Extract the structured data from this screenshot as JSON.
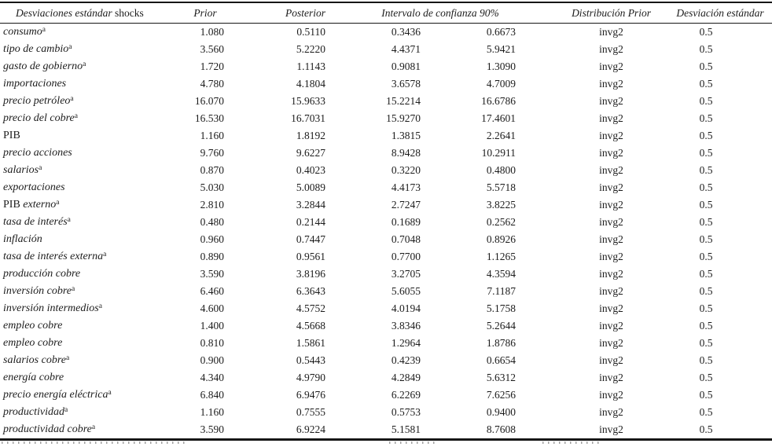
{
  "page": {
    "background_color": "#ffffff",
    "text_color": "#1c1c1c",
    "rule_color": "#161616"
  },
  "table": {
    "header": {
      "label_segments": [
        {
          "t": "Desviaciones estándar ",
          "i": true
        },
        {
          "t": "shocks",
          "i": false
        }
      ],
      "prior": "Prior",
      "posterior": "Posterior",
      "ci": "Intervalo de confianza 90%",
      "dist": "Distribución Prior",
      "std": "Desviación estándar"
    },
    "rows": [
      {
        "segments": [
          {
            "t": "consumo",
            "i": true
          }
        ],
        "sup": "a",
        "prior": "1.080",
        "posterior": "0.5110",
        "ci_low": "0.3436",
        "ci_high": "0.6673",
        "dist": "invg2",
        "std": "0.5"
      },
      {
        "segments": [
          {
            "t": "tipo de cambio",
            "i": true
          }
        ],
        "sup": "a",
        "prior": "3.560",
        "posterior": "5.2220",
        "ci_low": "4.4371",
        "ci_high": "5.9421",
        "dist": "invg2",
        "std": "0.5"
      },
      {
        "segments": [
          {
            "t": "gasto de gobierno",
            "i": true
          }
        ],
        "sup": "a",
        "prior": "1.720",
        "posterior": "1.1143",
        "ci_low": "0.9081",
        "ci_high": "1.3090",
        "dist": "invg2",
        "std": "0.5"
      },
      {
        "segments": [
          {
            "t": "importaciones",
            "i": true
          }
        ],
        "sup": "",
        "prior": "4.780",
        "posterior": "4.1804",
        "ci_low": "3.6578",
        "ci_high": "4.7009",
        "dist": "invg2",
        "std": "0.5"
      },
      {
        "segments": [
          {
            "t": "precio petróleo",
            "i": true
          }
        ],
        "sup": "a",
        "prior": "16.070",
        "posterior": "15.9633",
        "ci_low": "15.2214",
        "ci_high": "16.6786",
        "dist": "invg2",
        "std": "0.5"
      },
      {
        "segments": [
          {
            "t": "precio del cobre",
            "i": true
          }
        ],
        "sup": "a",
        "prior": "16.530",
        "posterior": "16.7031",
        "ci_low": "15.9270",
        "ci_high": "17.4601",
        "dist": "invg2",
        "std": "0.5"
      },
      {
        "segments": [
          {
            "t": "PIB",
            "i": false
          }
        ],
        "sup": "",
        "prior": "1.160",
        "posterior": "1.8192",
        "ci_low": "1.3815",
        "ci_high": "2.2641",
        "dist": "invg2",
        "std": "0.5"
      },
      {
        "segments": [
          {
            "t": "precio acciones",
            "i": true
          }
        ],
        "sup": "",
        "prior": "9.760",
        "posterior": "9.6227",
        "ci_low": "8.9428",
        "ci_high": "10.2911",
        "dist": "invg2",
        "std": "0.5"
      },
      {
        "segments": [
          {
            "t": "salarios",
            "i": true
          }
        ],
        "sup": "a",
        "prior": "0.870",
        "posterior": "0.4023",
        "ci_low": "0.3220",
        "ci_high": "0.4800",
        "dist": "invg2",
        "std": "0.5"
      },
      {
        "segments": [
          {
            "t": "exportaciones",
            "i": true
          }
        ],
        "sup": "",
        "prior": "5.030",
        "posterior": "5.0089",
        "ci_low": "4.4173",
        "ci_high": "5.5718",
        "dist": "invg2",
        "std": "0.5"
      },
      {
        "segments": [
          {
            "t": "PIB",
            "i": false
          },
          {
            "t": " externo",
            "i": true
          }
        ],
        "sup": "a",
        "prior": "2.810",
        "posterior": "3.2844",
        "ci_low": "2.7247",
        "ci_high": "3.8225",
        "dist": "invg2",
        "std": "0.5"
      },
      {
        "segments": [
          {
            "t": "tasa de interés",
            "i": true
          }
        ],
        "sup": "a",
        "prior": "0.480",
        "posterior": "0.2144",
        "ci_low": "0.1689",
        "ci_high": "0.2562",
        "dist": "invg2",
        "std": "0.5"
      },
      {
        "segments": [
          {
            "t": "inflación",
            "i": true
          }
        ],
        "sup": "",
        "prior": "0.960",
        "posterior": "0.7447",
        "ci_low": "0.7048",
        "ci_high": "0.8926",
        "dist": "invg2",
        "std": "0.5"
      },
      {
        "segments": [
          {
            "t": "tasa de interés externa",
            "i": true
          }
        ],
        "sup": "a",
        "prior": "0.890",
        "posterior": "0.9561",
        "ci_low": "0.7700",
        "ci_high": "1.1265",
        "dist": "invg2",
        "std": "0.5"
      },
      {
        "segments": [
          {
            "t": "producción cobre",
            "i": true
          }
        ],
        "sup": "",
        "prior": "3.590",
        "posterior": "3.8196",
        "ci_low": "3.2705",
        "ci_high": "4.3594",
        "dist": "invg2",
        "std": "0.5"
      },
      {
        "segments": [
          {
            "t": "inversión cobre",
            "i": true
          }
        ],
        "sup": "a",
        "prior": "6.460",
        "posterior": "6.3643",
        "ci_low": "5.6055",
        "ci_high": "7.1187",
        "dist": "invg2",
        "std": "0.5"
      },
      {
        "segments": [
          {
            "t": "inversión intermedios",
            "i": true
          }
        ],
        "sup": "a",
        "prior": "4.600",
        "posterior": "4.5752",
        "ci_low": "4.0194",
        "ci_high": "5.1758",
        "dist": "invg2",
        "std": "0.5"
      },
      {
        "segments": [
          {
            "t": "empleo cobre",
            "i": true
          }
        ],
        "sup": "",
        "prior": "1.400",
        "posterior": "4.5668",
        "ci_low": "3.8346",
        "ci_high": "5.2644",
        "dist": "invg2",
        "std": "0.5"
      },
      {
        "segments": [
          {
            "t": "empleo cobre",
            "i": true
          }
        ],
        "sup": "",
        "prior": "0.810",
        "posterior": "1.5861",
        "ci_low": "1.2964",
        "ci_high": "1.8786",
        "dist": "invg2",
        "std": "0.5"
      },
      {
        "segments": [
          {
            "t": "salarios cobre",
            "i": true
          }
        ],
        "sup": "a",
        "prior": "0.900",
        "posterior": "0.5443",
        "ci_low": "0.4239",
        "ci_high": "0.6654",
        "dist": "invg2",
        "std": "0.5"
      },
      {
        "segments": [
          {
            "t": "energía cobre",
            "i": true
          }
        ],
        "sup": "",
        "prior": "4.340",
        "posterior": "4.9790",
        "ci_low": "4.2849",
        "ci_high": "5.6312",
        "dist": "invg2",
        "std": "0.5"
      },
      {
        "segments": [
          {
            "t": "precio energía eléctrica",
            "i": true
          }
        ],
        "sup": "a",
        "prior": "6.840",
        "posterior": "6.9476",
        "ci_low": "6.2269",
        "ci_high": "7.6256",
        "dist": "invg2",
        "std": "0.5"
      },
      {
        "segments": [
          {
            "t": "productividad",
            "i": true
          }
        ],
        "sup": "a",
        "prior": "1.160",
        "posterior": "0.7555",
        "ci_low": "0.5753",
        "ci_high": "0.9400",
        "dist": "invg2",
        "std": "0.5"
      },
      {
        "segments": [
          {
            "t": "productividad cobre",
            "i": true
          }
        ],
        "sup": "a",
        "prior": "3.590",
        "posterior": "6.9224",
        "ci_low": "5.1581",
        "ci_high": "8.7608",
        "dist": "invg2",
        "std": "0.5"
      }
    ]
  }
}
